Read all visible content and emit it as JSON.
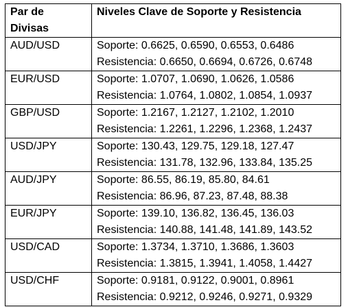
{
  "header": {
    "col1_line1": "Par de",
    "col1_line2": "Divisas",
    "col2": "Niveles Clave de Soporte y Resistencia"
  },
  "rows": [
    {
      "pair": "AUD/USD",
      "support": "Soporte: 0.6625, 0.6590, 0.6553, 0.6486",
      "resistance": "Resistencia: 0.6650, 0.6694, 0.6726, 0.6748"
    },
    {
      "pair": "EUR/USD",
      "support": "Soporte: 1.0707, 1.0690, 1.0626, 1.0586",
      "resistance": "Resistencia: 1.0764, 1.0802, 1.0854, 1.0937"
    },
    {
      "pair": "GBP/USD",
      "support": "Soporte: 1.2167, 1.2127, 1.2102, 1.2010",
      "resistance": "Resistencia: 1.2261, 1.2296, 1.2368, 1.2437"
    },
    {
      "pair": "USD/JPY",
      "support": "Soporte: 130.43, 129.75, 129.18, 127.47",
      "resistance": "Resistencia: 131.78, 132.96, 133.84, 135.25"
    },
    {
      "pair": "AUD/JPY",
      "support": "Soporte: 86.55, 86.19, 85.80, 84.61",
      "resistance": "Resistencia: 86.96, 87.23, 87.48, 88.38"
    },
    {
      "pair": "EUR/JPY",
      "support": "Soporte: 139.10, 136.82, 136.45, 136.03",
      "resistance": "Resistencia: 140.88, 141.48, 141.89, 143.52"
    },
    {
      "pair": "USD/CAD",
      "support": "Soporte: 1.3734, 1.3710, 1.3686, 1.3603",
      "resistance": "Resistencia: 1.3815, 1.3941, 1.4058, 1.4427"
    },
    {
      "pair": "USD/CHF",
      "support": "Soporte: 0.9181, 0.9122, 0.9001, 0.8961",
      "resistance": "Resistencia: 0.9212, 0.9246, 0.9271, 0.9329"
    }
  ]
}
